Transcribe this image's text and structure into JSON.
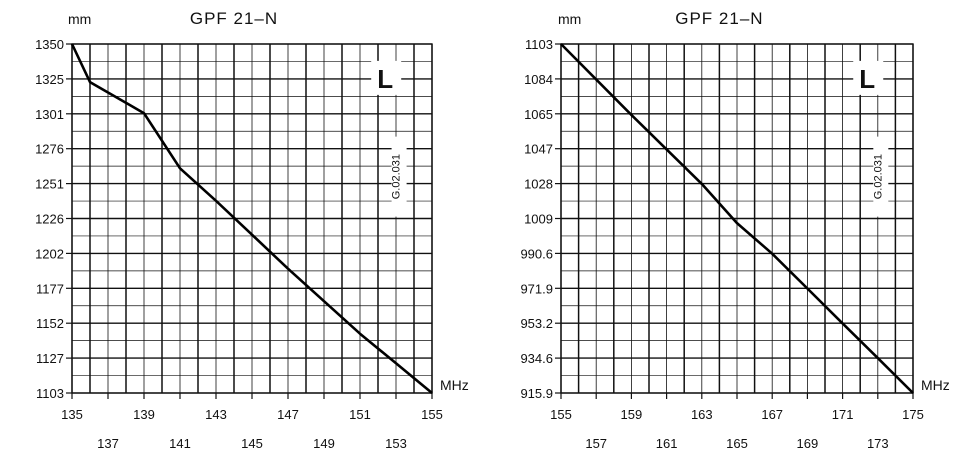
{
  "chart_data": [
    {
      "type": "line",
      "title": "GPF 21–N",
      "ylabel": "mm",
      "xlabel": "MHz",
      "marker_label": "L",
      "side_code": "G.02.031",
      "x_ticks_upper": [
        "135",
        "139",
        "143",
        "147",
        "151",
        "155"
      ],
      "x_ticks_lower": [
        "137",
        "141",
        "145",
        "149",
        "153"
      ],
      "y_ticks": [
        "1350",
        "1325",
        "1301",
        "1276",
        "1251",
        "1226",
        "1202",
        "1177",
        "1152",
        "1127",
        "1103"
      ],
      "xlim": [
        135,
        155
      ],
      "ylim": [
        1103,
        1350
      ],
      "grid": true,
      "x": [
        135,
        136,
        139,
        141,
        143,
        145,
        147,
        149,
        151,
        153,
        155
      ],
      "y": [
        1350,
        1323,
        1301,
        1262,
        1239,
        1215,
        1191,
        1168,
        1145,
        1124,
        1103
      ]
    },
    {
      "type": "line",
      "title": "GPF 21–N",
      "ylabel": "mm",
      "xlabel": "MHz",
      "marker_label": "L",
      "side_code": "G.02.031",
      "x_ticks_upper": [
        "155",
        "159",
        "163",
        "167",
        "171",
        "175"
      ],
      "x_ticks_lower": [
        "157",
        "161",
        "165",
        "169",
        "173"
      ],
      "y_ticks": [
        "1103",
        "1084",
        "1065",
        "1047",
        "1028",
        "1009",
        "990.6",
        "971.9",
        "953.2",
        "934.6",
        "915.9"
      ],
      "xlim": [
        155,
        175
      ],
      "ylim": [
        915.9,
        1103
      ],
      "grid": true,
      "x": [
        155,
        159,
        163,
        165,
        167,
        169,
        171,
        173,
        175
      ],
      "y": [
        1103,
        1065,
        1028,
        1007,
        990.6,
        971.9,
        953.2,
        934.6,
        915.9
      ]
    }
  ]
}
